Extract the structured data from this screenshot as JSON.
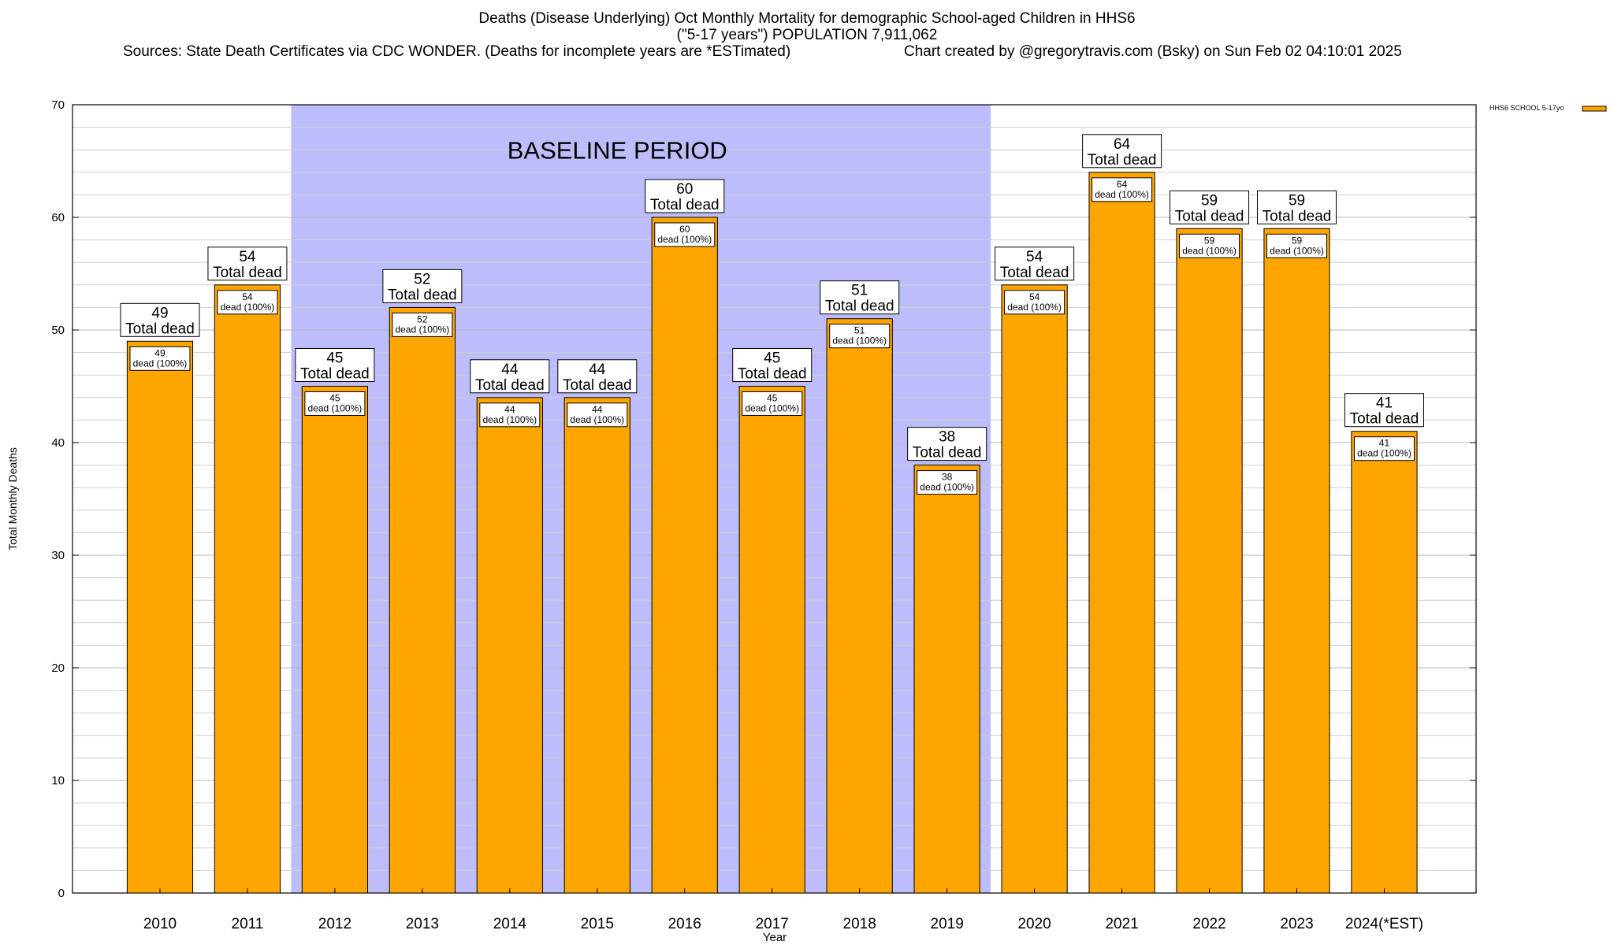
{
  "header": {
    "title_line1": "Deaths (Disease Underlying) Oct Monthly Mortality for demographic School-aged Children in HHS6",
    "title_line2": "(\"5-17 years\") POPULATION 7,911,062",
    "sources": "Sources: State Death Certificates via CDC WONDER. (Deaths for incomplete years are *ESTimated)",
    "credit": "Chart created by @gregorytravis.com (Bsky) on Sun Feb 02 04:10:01 2025"
  },
  "chart_data": {
    "type": "bar",
    "categories": [
      "2010",
      "2011",
      "2012",
      "2013",
      "2014",
      "2015",
      "2016",
      "2017",
      "2018",
      "2019",
      "2020",
      "2021",
      "2022",
      "2023",
      "2024(*EST)"
    ],
    "series": [
      {
        "name": "HHS6 SCHOOL 5-17yo",
        "values": [
          49,
          54,
          45,
          52,
          44,
          44,
          60,
          45,
          51,
          38,
          54,
          64,
          59,
          59,
          41
        ]
      }
    ],
    "xlabel": "Year",
    "ylabel": "Total Monthly Deaths",
    "ylim": [
      0,
      70
    ],
    "yticks": [
      0,
      10,
      20,
      30,
      40,
      50,
      60,
      70
    ],
    "grid": true,
    "legend_position": "top-right",
    "bar_color": "#FFA500",
    "baseline": {
      "label": "BASELINE PERIOD",
      "from": "2012",
      "to": "2019",
      "color": "#BDBDFB"
    },
    "top_label_suffix": "Total dead",
    "inner_label_suffix": "dead (100%)"
  }
}
